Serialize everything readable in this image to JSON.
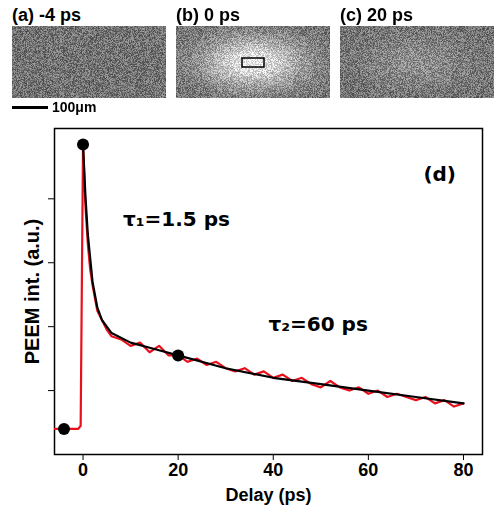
{
  "panels": [
    {
      "label": "(a) -4 ps"
    },
    {
      "label": "(b) 0 ps"
    },
    {
      "label": "(c) 20 ps"
    }
  ],
  "scale_bar": "100μm",
  "chart_data": {
    "type": "line",
    "x_label": "Delay (ps)",
    "y_label": "PEEM int. (a.u.)",
    "xlim": [
      -6,
      84
    ],
    "xticks": [
      0,
      20,
      40,
      60,
      80
    ],
    "ylim": [
      0,
      1.02
    ],
    "yticks": [
      0.2,
      0.4,
      0.6,
      0.8
    ],
    "tick_labels": "x",
    "grid": false,
    "annotations": [
      "τ₁=1.5 ps",
      "τ₂=60 ps",
      "(d)"
    ],
    "series": [
      {
        "color": "#e8101c",
        "type": "line",
        "line_style": "solid",
        "x": [
          -6,
          -4,
          -2,
          -1,
          -0.5,
          0,
          0.5,
          1,
          1.5,
          2,
          3,
          4,
          5,
          6,
          8,
          10,
          12,
          14,
          16,
          18,
          20,
          22,
          24,
          26,
          28,
          30,
          32,
          34,
          36,
          38,
          40,
          42,
          44,
          46,
          48,
          50,
          52,
          54,
          56,
          58,
          60,
          62,
          64,
          66,
          68,
          70,
          72,
          74,
          76,
          78,
          80
        ],
        "values": [
          0.08,
          0.08,
          0.08,
          0.08,
          0.09,
          0.97,
          0.78,
          0.66,
          0.58,
          0.53,
          0.45,
          0.42,
          0.39,
          0.37,
          0.36,
          0.34,
          0.35,
          0.32,
          0.34,
          0.31,
          0.31,
          0.29,
          0.3,
          0.28,
          0.29,
          0.27,
          0.26,
          0.27,
          0.25,
          0.26,
          0.24,
          0.25,
          0.23,
          0.24,
          0.22,
          0.21,
          0.23,
          0.21,
          0.2,
          0.21,
          0.19,
          0.2,
          0.18,
          0.19,
          0.18,
          0.17,
          0.18,
          0.16,
          0.17,
          0.15,
          0.16
        ]
      },
      {
        "color": "#000000",
        "type": "line",
        "line_style": "solid",
        "x": [
          0,
          0.5,
          1,
          2,
          3,
          4,
          6,
          10,
          15,
          20,
          30,
          40,
          50,
          60,
          70,
          80
        ],
        "values": [
          0.97,
          0.81,
          0.69,
          0.54,
          0.46,
          0.42,
          0.38,
          0.35,
          0.33,
          0.31,
          0.27,
          0.24,
          0.22,
          0.2,
          0.18,
          0.16
        ]
      },
      {
        "color": "#000000",
        "type": "scatter",
        "marker": "circle",
        "x": [
          -4,
          0,
          20
        ],
        "values": [
          0.08,
          0.97,
          0.31
        ]
      }
    ]
  }
}
